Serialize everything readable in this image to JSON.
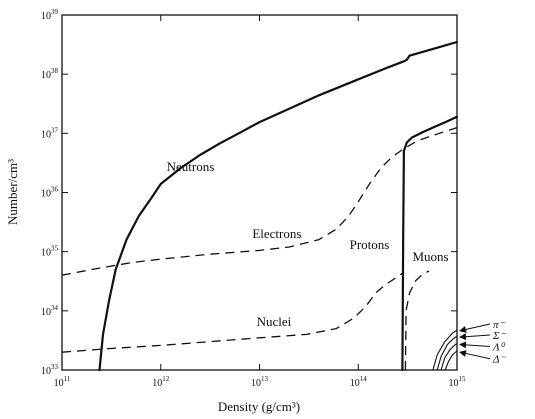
{
  "chart_data": {
    "type": "line",
    "xlabel": "Density  (g/cm³)",
    "ylabel": "Number/cm³",
    "x_scale": "log",
    "y_scale": "log",
    "xlim": [
      100000000000.0,
      1000000000000000.0
    ],
    "ylim": [
      1e+33,
      1e+39
    ],
    "x_ticks": [
      {
        "value": 100000000000.0,
        "base": "10",
        "exp": "11"
      },
      {
        "value": 1000000000000.0,
        "base": "10",
        "exp": "12"
      },
      {
        "value": 10000000000000.0,
        "base": "10",
        "exp": "13"
      },
      {
        "value": 100000000000000.0,
        "base": "10",
        "exp": "14"
      },
      {
        "value": 1000000000000000.0,
        "base": "10",
        "exp": "15"
      }
    ],
    "y_ticks": [
      {
        "value": 1e+33,
        "base": "10",
        "exp": "33"
      },
      {
        "value": 1e+34,
        "base": "10",
        "exp": "34"
      },
      {
        "value": 1e+35,
        "base": "10",
        "exp": "35"
      },
      {
        "value": 1e+36,
        "base": "10",
        "exp": "36"
      },
      {
        "value": 1e+37,
        "base": "10",
        "exp": "37"
      },
      {
        "value": 1e+38,
        "base": "10",
        "exp": "38"
      },
      {
        "value": 1e+39,
        "base": "10",
        "exp": "39"
      }
    ],
    "grid": false,
    "series": [
      {
        "name": "Neutrons",
        "style": "solid",
        "width": 2.2,
        "points": [
          [
            240000000000.0,
            1e+33
          ],
          [
            260000000000.0,
            4e+33
          ],
          [
            300000000000.0,
            1.5e+34
          ],
          [
            350000000000.0,
            5e+34
          ],
          [
            450000000000.0,
            1.6e+35
          ],
          [
            600000000000.0,
            4e+35
          ],
          [
            800000000000.0,
            8e+35
          ],
          [
            1000000000000.0,
            1.4e+36
          ],
          [
            1600000000000.0,
            2.6e+36
          ],
          [
            2500000000000.0,
            4.3e+36
          ],
          [
            4000000000000.0,
            6.8e+36
          ],
          [
            6300000000000.0,
            1.02e+37
          ],
          [
            10000000000000.0,
            1.55e+37
          ],
          [
            20000000000000.0,
            2.6e+37
          ],
          [
            40000000000000.0,
            4.4e+37
          ],
          [
            100000000000000.0,
            8.2e+37
          ],
          [
            200000000000000.0,
            1.3e+38
          ],
          [
            290000000000000.0,
            1.65e+38
          ],
          [
            310000000000000.0,
            1.75e+38
          ],
          [
            330000000000000.0,
            2.05e+38
          ],
          [
            500000000000000.0,
            2.5e+38
          ],
          [
            700000000000000.0,
            2.95e+38
          ],
          [
            1000000000000000.0,
            3.5e+38
          ]
        ]
      },
      {
        "name": "Electrons",
        "style": "dashed",
        "width": 1.3,
        "points": [
          [
            100000000000.0,
            4e+34
          ],
          [
            200000000000.0,
            5e+34
          ],
          [
            500000000000.0,
            6.5e+34
          ],
          [
            1000000000000.0,
            7.5e+34
          ],
          [
            3000000000000.0,
            9e+34
          ],
          [
            10000000000000.0,
            1.05e+35
          ],
          [
            20000000000000.0,
            1.2e+35
          ],
          [
            40000000000000.0,
            1.6e+35
          ],
          [
            60000000000000.0,
            2.4e+35
          ],
          [
            80000000000000.0,
            4e+35
          ],
          [
            100000000000000.0,
            7e+35
          ],
          [
            130000000000000.0,
            1.4e+36
          ],
          [
            170000000000000.0,
            2.6e+36
          ],
          [
            220000000000000.0,
            4e+36
          ],
          [
            290000000000000.0,
            5.5e+36
          ],
          [
            400000000000000.0,
            7.5e+36
          ],
          [
            600000000000000.0,
            9.5e+36
          ],
          [
            1000000000000000.0,
            1.25e+37
          ]
        ]
      },
      {
        "name": "Nuclei",
        "style": "dashed",
        "width": 1.3,
        "points": [
          [
            100000000000.0,
            2e+33
          ],
          [
            300000000000.0,
            2.3e+33
          ],
          [
            1000000000000.0,
            2.6e+33
          ],
          [
            3000000000000.0,
            3e+33
          ],
          [
            10000000000000.0,
            3.5e+33
          ],
          [
            30000000000000.0,
            4e+33
          ],
          [
            60000000000000.0,
            5e+33
          ],
          [
            90000000000000.0,
            7.5e+33
          ],
          [
            120000000000000.0,
            1.2e+34
          ],
          [
            150000000000000.0,
            2e+34
          ],
          [
            190000000000000.0,
            2.8e+34
          ],
          [
            240000000000000.0,
            3.6e+34
          ],
          [
            290000000000000.0,
            4.5e+34
          ]
        ]
      },
      {
        "name": "Protons",
        "style": "solid",
        "width": 2.2,
        "points": [
          [
            280000000000000.0,
            1e+33
          ],
          [
            285000000000000.0,
            2e+35
          ],
          [
            290000000000000.0,
            5e+36
          ],
          [
            310000000000000.0,
            7e+36
          ],
          [
            350000000000000.0,
            8.5e+36
          ],
          [
            450000000000000.0,
            1.05e+37
          ],
          [
            600000000000000.0,
            1.3e+37
          ],
          [
            800000000000000.0,
            1.6e+37
          ],
          [
            1000000000000000.0,
            1.9e+37
          ]
        ]
      },
      {
        "name": "Muons",
        "style": "dashed",
        "width": 1.3,
        "points": [
          [
            300000000000000.0,
            1e+33
          ],
          [
            305000000000000.0,
            1e+34
          ],
          [
            330000000000000.0,
            2e+34
          ],
          [
            380000000000000.0,
            3.2e+34
          ],
          [
            450000000000000.0,
            4.2e+34
          ],
          [
            520000000000000.0,
            4.7e+34
          ]
        ]
      },
      {
        "name": "π⁻",
        "style": "solid",
        "width": 1.1,
        "points": [
          [
            570000000000000.0,
            1e+33
          ],
          [
            630000000000000.0,
            1.8e+33
          ],
          [
            750000000000000.0,
            3e+33
          ],
          [
            900000000000000.0,
            4.2e+33
          ],
          [
            1000000000000000.0,
            4.7e+33
          ]
        ]
      },
      {
        "name": "Σ⁻",
        "style": "solid",
        "width": 1.1,
        "points": [
          [
            630000000000000.0,
            1e+33
          ],
          [
            690000000000000.0,
            1.7e+33
          ],
          [
            800000000000000.0,
            2.7e+33
          ],
          [
            920000000000000.0,
            3.4e+33
          ],
          [
            1000000000000000.0,
            3.7e+33
          ]
        ]
      },
      {
        "name": "Λ⁰",
        "style": "solid",
        "width": 1.1,
        "points": [
          [
            690000000000000.0,
            1e+33
          ],
          [
            750000000000000.0,
            1.6e+33
          ],
          [
            850000000000000.0,
            2.2e+33
          ],
          [
            940000000000000.0,
            2.6e+33
          ],
          [
            1000000000000000.0,
            2.8e+33
          ]
        ]
      },
      {
        "name": "Δ⁻",
        "style": "solid",
        "width": 1.1,
        "points": [
          [
            760000000000000.0,
            1e+33
          ],
          [
            820000000000000.0,
            1.4e+33
          ],
          [
            900000000000000.0,
            1.8e+33
          ],
          [
            1000000000000000.0,
            2.1e+33
          ]
        ]
      }
    ],
    "annotations": [
      {
        "text": "Neutrons",
        "x": 2000000000000.0,
        "y": 2.3e+36,
        "anchor": "middle"
      },
      {
        "text": "Electrons",
        "x": 15000000000000.0,
        "y": 1.7e+35,
        "anchor": "middle"
      },
      {
        "text": "Protons",
        "x": 130000000000000.0,
        "y": 1.1e+35,
        "anchor": "middle"
      },
      {
        "text": "Nuclei",
        "x": 14000000000000.0,
        "y": 5.5e+33,
        "anchor": "middle"
      },
      {
        "text": "Muons",
        "x": 540000000000000.0,
        "y": 7e+34,
        "anchor": "middle"
      }
    ],
    "particle_labels": [
      {
        "text": "π⁻",
        "y": 6e+33,
        "arrow_to_y": 4.6e+33
      },
      {
        "text": "Σ⁻",
        "y": 3.9e+33,
        "arrow_to_y": 3.6e+33
      },
      {
        "text": "Λ⁰",
        "y": 2.5e+33,
        "arrow_to_y": 2.7e+33
      },
      {
        "text": "Δ⁻",
        "y": 1.55e+33,
        "arrow_to_y": 2e+33
      }
    ]
  }
}
